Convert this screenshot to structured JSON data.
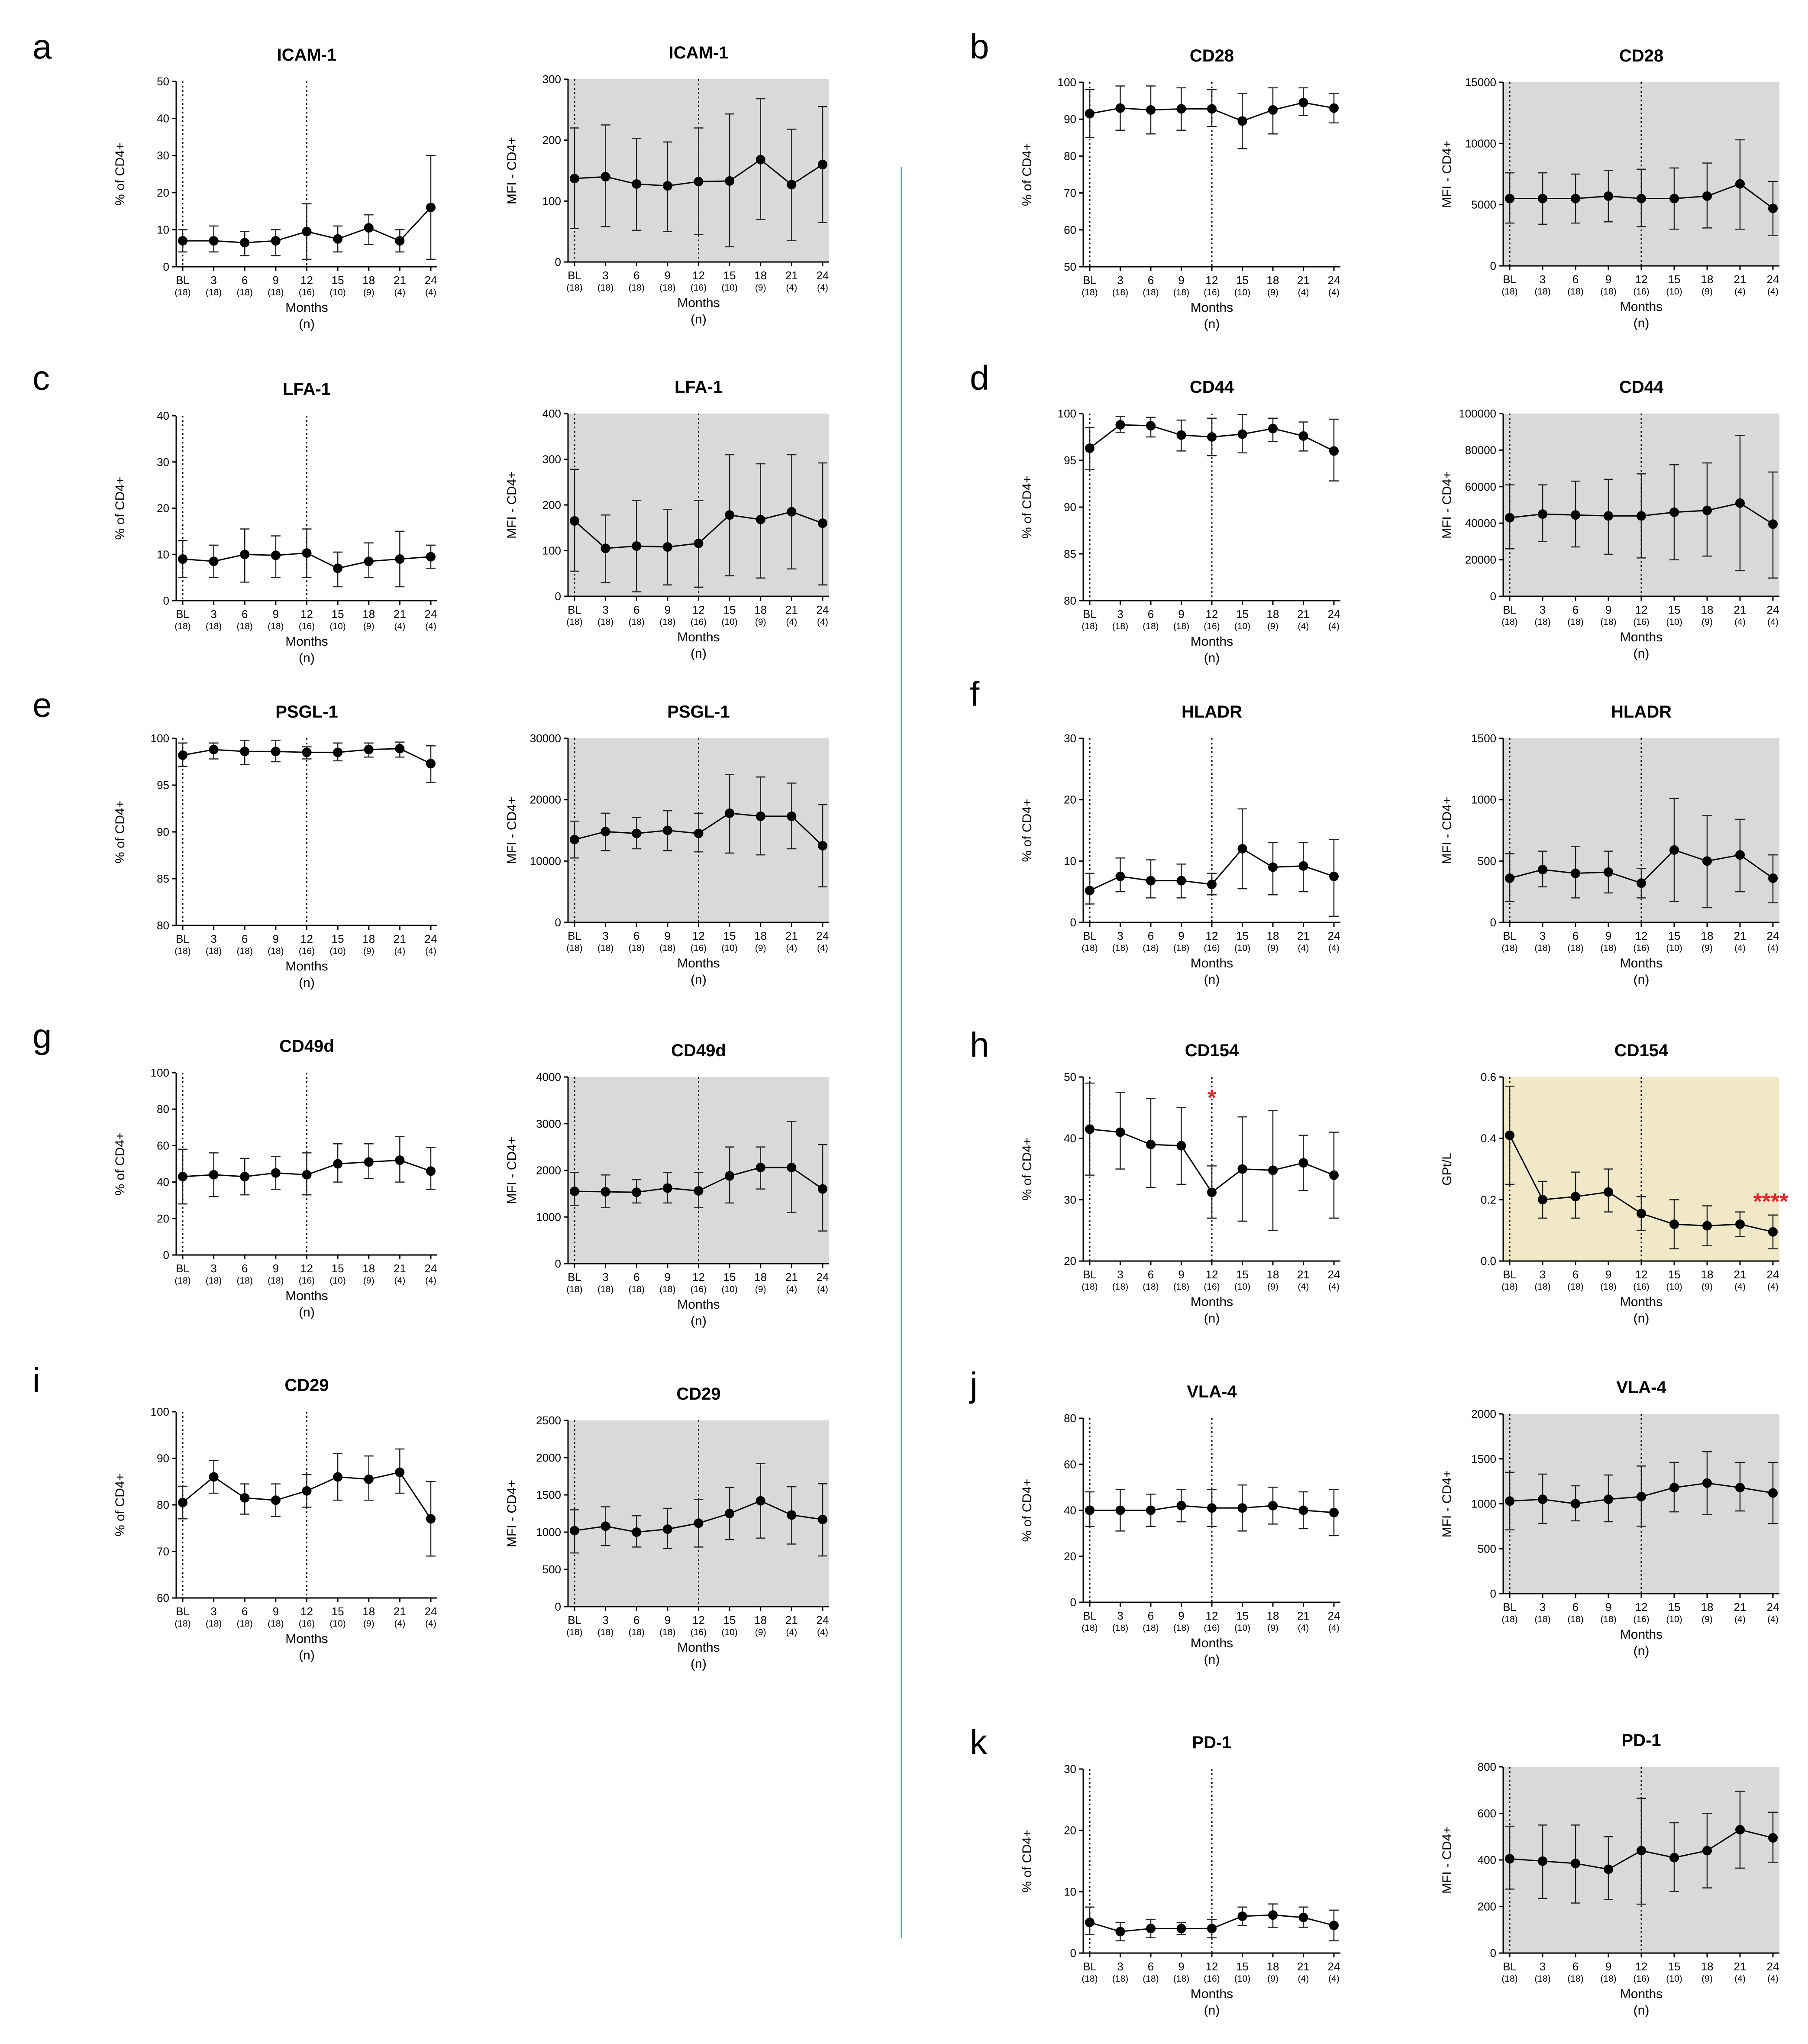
{
  "x_categories": [
    "BL",
    "3",
    "6",
    "9",
    "12",
    "15",
    "18",
    "21",
    "24"
  ],
  "n_labels": [
    "(18)",
    "(18)",
    "(18)",
    "(18)",
    "(16)",
    "(10)",
    "(9)",
    "(4)",
    "(4)"
  ],
  "xlabel": "Months",
  "xlabel_sub": "(n)",
  "colors": {
    "gray_bg": "#d9d9d9",
    "tan_bg": "#f1e8c8",
    "separator": "#5b9bd5",
    "significance": "#e0242a"
  },
  "chart_data": [
    {
      "panel": "a",
      "type": "line",
      "title": "ICAM-1",
      "ylabel": "% of CD4+",
      "ylim": [
        0,
        50
      ],
      "yticks": [
        0,
        10,
        20,
        30,
        40,
        50
      ],
      "background": "white",
      "values": [
        7,
        7,
        6.5,
        7,
        9.5,
        7.5,
        10.5,
        7,
        16
      ],
      "err_low": [
        4,
        4,
        3,
        3,
        2,
        4,
        6,
        4,
        2
      ],
      "err_high": [
        10,
        11,
        9.5,
        10,
        17,
        11,
        14,
        10,
        30
      ]
    },
    {
      "panel": "a",
      "type": "line",
      "title": "ICAM-1",
      "ylabel": "MFI - CD4+",
      "ylim": [
        0,
        300
      ],
      "yticks": [
        0,
        100,
        200,
        300
      ],
      "background": "gray",
      "values": [
        137,
        140,
        128,
        125,
        132,
        133,
        168,
        127,
        160
      ],
      "err_low": [
        55,
        58,
        52,
        50,
        45,
        25,
        70,
        35,
        65
      ],
      "err_high": [
        220,
        225,
        203,
        197,
        220,
        243,
        268,
        218,
        255
      ]
    },
    {
      "panel": "b",
      "type": "line",
      "title": "CD28",
      "ylabel": "% of CD4+",
      "ylim": [
        50,
        100
      ],
      "yticks": [
        50,
        60,
        70,
        80,
        90,
        100
      ],
      "background": "white",
      "values": [
        91.5,
        93,
        92.5,
        92.8,
        92.8,
        89.5,
        92.5,
        94.5,
        93
      ],
      "err_low": [
        85,
        87,
        86,
        87,
        88,
        82,
        86,
        91,
        89
      ],
      "err_high": [
        98,
        99,
        99,
        98.5,
        98,
        97,
        98.5,
        98.5,
        97
      ]
    },
    {
      "panel": "b",
      "type": "line",
      "title": "CD28",
      "ylabel": "MFI - CD4+",
      "ylim": [
        0,
        15000
      ],
      "yticks": [
        0,
        5000,
        10000,
        15000
      ],
      "background": "gray",
      "values": [
        5500,
        5500,
        5500,
        5700,
        5500,
        5500,
        5700,
        6700,
        4700
      ],
      "err_low": [
        3500,
        3400,
        3500,
        3600,
        3200,
        3000,
        3100,
        3000,
        2500
      ],
      "err_high": [
        7600,
        7600,
        7500,
        7800,
        7900,
        8000,
        8400,
        10300,
        6900
      ]
    },
    {
      "panel": "c",
      "type": "line",
      "title": "LFA-1",
      "ylabel": "% of CD4+",
      "ylim": [
        0,
        40
      ],
      "yticks": [
        0,
        10,
        20,
        30,
        40
      ],
      "background": "white",
      "values": [
        9,
        8.5,
        10,
        9.8,
        10.3,
        7,
        8.5,
        9,
        9.5
      ],
      "err_low": [
        5,
        5,
        4,
        5,
        5,
        3,
        5,
        3,
        7
      ],
      "err_high": [
        13,
        12,
        15.5,
        14,
        15.5,
        10.5,
        12.5,
        15,
        12
      ]
    },
    {
      "panel": "c",
      "type": "line",
      "title": "LFA-1",
      "ylabel": "MFI - CD4+",
      "ylim": [
        0,
        400
      ],
      "yticks": [
        0,
        100,
        200,
        300,
        400
      ],
      "background": "gray",
      "values": [
        165,
        105,
        110,
        108,
        116,
        178,
        168,
        185,
        160
      ],
      "err_low": [
        55,
        30,
        10,
        25,
        20,
        45,
        40,
        60,
        25
      ],
      "err_high": [
        278,
        178,
        210,
        190,
        210,
        310,
        290,
        310,
        292
      ]
    },
    {
      "panel": "d",
      "type": "line",
      "title": "CD44",
      "ylabel": "% of CD4+",
      "ylim": [
        80,
        100
      ],
      "yticks": [
        80,
        85,
        90,
        95,
        100
      ],
      "background": "white",
      "values": [
        96.3,
        98.8,
        98.7,
        97.7,
        97.5,
        97.8,
        98.4,
        97.6,
        96
      ],
      "err_low": [
        94,
        98,
        97.5,
        96,
        95.5,
        95.8,
        97,
        96,
        92.8
      ],
      "err_high": [
        98.5,
        99.7,
        99.6,
        99.3,
        99.5,
        99.9,
        99.5,
        99.1,
        99.4
      ]
    },
    {
      "panel": "d",
      "type": "line",
      "title": "CD44",
      "ylabel": "MFI - CD4+",
      "ylim": [
        0,
        100000
      ],
      "yticks": [
        0,
        20000,
        40000,
        60000,
        80000,
        100000
      ],
      "background": "gray",
      "values": [
        43000,
        45000,
        44500,
        44000,
        44000,
        46000,
        47000,
        51000,
        39500
      ],
      "err_low": [
        26000,
        30000,
        27000,
        23000,
        21000,
        20000,
        22000,
        14000,
        10000
      ],
      "err_high": [
        61000,
        61000,
        63000,
        64000,
        67000,
        72000,
        73000,
        88000,
        68000
      ]
    },
    {
      "panel": "e",
      "type": "line",
      "title": "PSGL-1",
      "ylabel": "% of CD4+",
      "ylim": [
        80,
        100
      ],
      "yticks": [
        80,
        85,
        90,
        95,
        100
      ],
      "background": "white",
      "values": [
        98.2,
        98.8,
        98.6,
        98.6,
        98.5,
        98.5,
        98.8,
        98.9,
        97.3
      ],
      "err_low": [
        97,
        97.8,
        97.2,
        97.5,
        97.8,
        97.6,
        98,
        98,
        95.3
      ],
      "err_high": [
        99.5,
        99.5,
        99.8,
        99.8,
        99.1,
        99.5,
        99.5,
        99.6,
        99.2
      ]
    },
    {
      "panel": "e",
      "type": "line",
      "title": "PSGL-1",
      "ylabel": "MFI - CD4+",
      "ylim": [
        0,
        30000
      ],
      "yticks": [
        0,
        10000,
        20000,
        30000
      ],
      "background": "gray",
      "values": [
        13500,
        14800,
        14500,
        15000,
        14500,
        17800,
        17300,
        17300,
        12500
      ],
      "err_low": [
        10500,
        11700,
        12000,
        11700,
        11500,
        11300,
        11000,
        12000,
        5800
      ],
      "err_high": [
        16500,
        17800,
        17100,
        18200,
        17800,
        24100,
        23700,
        22700,
        19200
      ]
    },
    {
      "panel": "f",
      "type": "line",
      "title": "HLADR",
      "ylabel": "% of CD4+",
      "ylim": [
        0,
        30
      ],
      "yticks": [
        0,
        10,
        20,
        30
      ],
      "background": "white",
      "values": [
        5.2,
        7.5,
        6.8,
        6.8,
        6.2,
        12,
        9,
        9.2,
        7.5
      ],
      "err_low": [
        3,
        5,
        4,
        4,
        4.5,
        5.5,
        4.5,
        5,
        1
      ],
      "err_high": [
        8,
        10.5,
        10.2,
        9.5,
        8,
        18.5,
        13,
        13,
        13.5
      ]
    },
    {
      "panel": "f",
      "type": "line",
      "title": "HLADR",
      "ylabel": "MFI - CD4+",
      "ylim": [
        0,
        1500
      ],
      "yticks": [
        0,
        500,
        1000,
        1500
      ],
      "background": "gray",
      "values": [
        360,
        430,
        400,
        410,
        320,
        590,
        500,
        550,
        360
      ],
      "err_low": [
        170,
        290,
        200,
        240,
        200,
        170,
        120,
        250,
        160
      ],
      "err_high": [
        560,
        580,
        620,
        580,
        440,
        1010,
        870,
        840,
        550
      ]
    },
    {
      "panel": "g",
      "type": "line",
      "title": "CD49d",
      "ylabel": "% of CD4+",
      "ylim": [
        0,
        100
      ],
      "yticks": [
        0,
        20,
        40,
        60,
        80,
        100
      ],
      "background": "white",
      "values": [
        43,
        44,
        43,
        45,
        44,
        50,
        51,
        52,
        46
      ],
      "err_low": [
        28,
        32,
        33,
        36,
        33,
        40,
        42,
        40,
        36
      ],
      "err_high": [
        58,
        56,
        53,
        54,
        56,
        61,
        61,
        65,
        59
      ]
    },
    {
      "panel": "g",
      "type": "line",
      "title": "CD49d",
      "ylabel": "MFI - CD4+",
      "ylim": [
        0,
        4000
      ],
      "yticks": [
        0,
        1000,
        2000,
        3000,
        4000
      ],
      "background": "gray",
      "values": [
        1550,
        1540,
        1530,
        1620,
        1560,
        1880,
        2060,
        2060,
        1600
      ],
      "err_low": [
        1250,
        1200,
        1300,
        1300,
        1200,
        1300,
        1600,
        1100,
        700
      ],
      "err_high": [
        1950,
        1900,
        1800,
        1950,
        1950,
        2500,
        2500,
        3050,
        2550
      ]
    },
    {
      "panel": "h",
      "type": "line",
      "title": "CD154",
      "ylabel": "% of CD4+",
      "ylim": [
        20,
        50
      ],
      "yticks": [
        20,
        30,
        40,
        50
      ],
      "background": "white",
      "values": [
        41.5,
        41,
        39,
        38.8,
        31.2,
        35,
        34.8,
        36,
        34
      ],
      "err_low": [
        34,
        35,
        32,
        32.5,
        27,
        26.5,
        25,
        31.5,
        27
      ],
      "err_high": [
        49,
        47.5,
        46.5,
        45,
        35.5,
        43.5,
        44.5,
        40.5,
        41
      ],
      "annotations": [
        {
          "text": "*",
          "category": "12"
        }
      ]
    },
    {
      "panel": "h",
      "type": "line",
      "title": "CD154",
      "ylabel": "GPt/L",
      "ylim": [
        0,
        0.6
      ],
      "yticks": [
        "0.0",
        "0.2",
        "0.4",
        "0.6"
      ],
      "background": "tan",
      "values": [
        0.41,
        0.2,
        0.21,
        0.225,
        0.155,
        0.12,
        0.115,
        0.12,
        0.095
      ],
      "err_low": [
        0.25,
        0.14,
        0.14,
        0.16,
        0.1,
        0.04,
        0.05,
        0.08,
        0.04
      ],
      "err_high": [
        0.57,
        0.26,
        0.29,
        0.3,
        0.21,
        0.2,
        0.18,
        0.16,
        0.15
      ],
      "annotations": [
        {
          "text": "****",
          "category": "24"
        }
      ]
    },
    {
      "panel": "i",
      "type": "line",
      "title": "CD29",
      "ylabel": "% of CD4+",
      "ylim": [
        60,
        100
      ],
      "yticks": [
        60,
        70,
        80,
        90,
        100
      ],
      "background": "white",
      "values": [
        80.5,
        86,
        81.5,
        81,
        83,
        86,
        85.5,
        87,
        77
      ],
      "err_low": [
        77,
        82.5,
        78,
        77.5,
        79.5,
        81,
        81,
        82.5,
        69
      ],
      "err_high": [
        84,
        89.5,
        84.5,
        84.5,
        86.5,
        91,
        90.5,
        92,
        85
      ]
    },
    {
      "panel": "i",
      "type": "line",
      "title": "CD29",
      "ylabel": "MFI - CD4+",
      "ylim": [
        0,
        2500
      ],
      "yticks": [
        0,
        500,
        1000,
        1500,
        2000,
        2500
      ],
      "background": "gray",
      "values": [
        1020,
        1080,
        1000,
        1040,
        1120,
        1250,
        1420,
        1230,
        1170
      ],
      "err_low": [
        720,
        820,
        800,
        780,
        800,
        900,
        920,
        840,
        680
      ],
      "err_high": [
        1300,
        1340,
        1220,
        1320,
        1440,
        1600,
        1920,
        1610,
        1650
      ]
    },
    {
      "panel": "j",
      "type": "line",
      "title": "VLA-4",
      "ylabel": "% of CD4+",
      "ylim": [
        0,
        80
      ],
      "yticks": [
        0,
        20,
        40,
        60,
        80
      ],
      "background": "white",
      "values": [
        40,
        40,
        40,
        42,
        41,
        41,
        42,
        40,
        39
      ],
      "err_low": [
        33,
        31,
        33,
        35,
        33,
        31,
        34,
        32,
        29
      ],
      "err_high": [
        48,
        49,
        47,
        49,
        49,
        51,
        50,
        48,
        49
      ]
    },
    {
      "panel": "j",
      "type": "line",
      "title": "VLA-4",
      "ylabel": "MFI - CD4+",
      "ylim": [
        0,
        2000
      ],
      "yticks": [
        0,
        500,
        1000,
        1500,
        2000
      ],
      "background": "gray",
      "values": [
        1030,
        1050,
        1000,
        1050,
        1080,
        1180,
        1230,
        1180,
        1120
      ],
      "err_low": [
        710,
        780,
        810,
        800,
        750,
        910,
        880,
        920,
        780
      ],
      "err_high": [
        1350,
        1330,
        1200,
        1320,
        1420,
        1460,
        1580,
        1460,
        1460
      ]
    },
    {
      "panel": "k",
      "type": "line",
      "title": "PD-1",
      "ylabel": "% of CD4+",
      "ylim": [
        0,
        30
      ],
      "yticks": [
        0,
        10,
        20,
        30
      ],
      "background": "white",
      "values": [
        5,
        3.5,
        4,
        4,
        4,
        6,
        6.2,
        5.8,
        4.5
      ],
      "err_low": [
        3,
        2,
        2.5,
        3,
        2.5,
        4.5,
        4.2,
        4.2,
        2
      ],
      "err_high": [
        7.5,
        5,
        5.5,
        5,
        5.5,
        7.5,
        8,
        7.5,
        7
      ]
    },
    {
      "panel": "k",
      "type": "line",
      "title": "PD-1",
      "ylabel": "MFI - CD4+",
      "ylim": [
        0,
        800
      ],
      "yticks": [
        0,
        200,
        400,
        600,
        800
      ],
      "background": "gray",
      "values": [
        405,
        395,
        385,
        360,
        440,
        410,
        440,
        530,
        495
      ],
      "err_low": [
        275,
        235,
        215,
        230,
        210,
        265,
        280,
        365,
        390
      ],
      "err_high": [
        545,
        550,
        550,
        500,
        665,
        560,
        600,
        695,
        605
      ]
    }
  ]
}
